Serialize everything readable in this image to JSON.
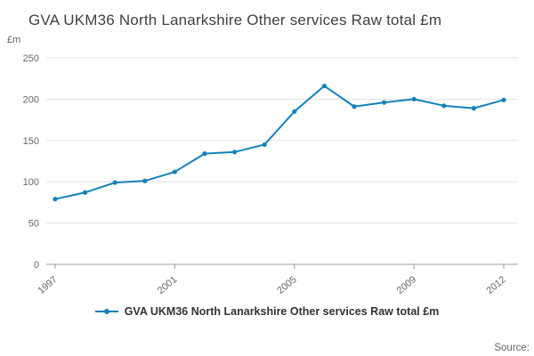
{
  "page": {
    "title": "GVA UKM36 North Lanarkshire Other services Raw total £m",
    "source_label": "Source:"
  },
  "colors": {
    "series": "#1581ba",
    "grid": "#e3e3e3",
    "axis": "#9b9b9b",
    "tick_text": "#666666"
  },
  "legend": {
    "label": "GVA UKM36 North Lanarkshire Other services Raw total £m"
  },
  "chart_data": {
    "type": "line",
    "title": "GVA UKM36 North Lanarkshire Other services Raw total £m",
    "xlabel": "",
    "ylabel": "£m",
    "ylim": [
      0,
      250
    ],
    "yticks": [
      0,
      50,
      100,
      150,
      200,
      250
    ],
    "x": [
      1997,
      1998,
      1999,
      2000,
      2001,
      2002,
      2003,
      2004,
      2005,
      2006,
      2007,
      2008,
      2009,
      2010,
      2011,
      2012
    ],
    "xtick_years": [
      1997,
      2001,
      2005,
      2009,
      2012
    ],
    "xtick_labels": [
      "1997",
      "2001",
      "2005",
      "2009",
      "2012"
    ],
    "grid": true,
    "legend_position": "bottom",
    "series": [
      {
        "name": "GVA UKM36 North Lanarkshire Other services Raw total £m",
        "values": [
          79,
          87,
          99,
          101,
          112,
          134,
          136,
          145,
          185,
          216,
          191,
          196,
          200,
          192,
          189,
          199
        ]
      }
    ]
  }
}
